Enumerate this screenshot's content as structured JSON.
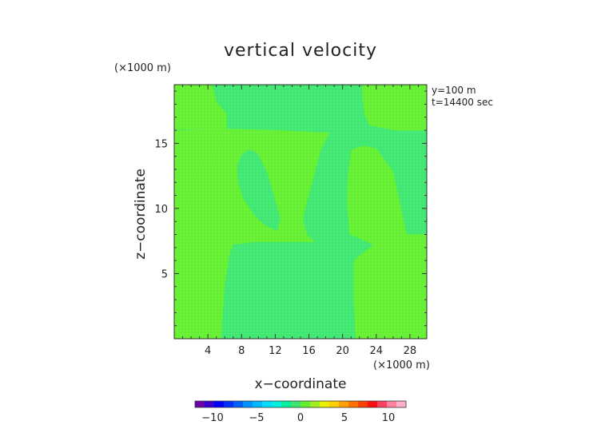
{
  "chart_data": {
    "type": "heatmap",
    "title": "vertical velocity",
    "xlabel": "x−coordinate",
    "ylabel": "z−coordinate",
    "x_scale_note": "(×1000 m)",
    "y_scale_note": "(×1000 m)",
    "info_lines": [
      "y=100 m",
      "t=14400 sec"
    ],
    "xlim": [
      0,
      30
    ],
    "ylim": [
      0,
      19.5
    ],
    "x_ticks": [
      4,
      8,
      12,
      16,
      20,
      24,
      28
    ],
    "y_ticks": [
      5,
      10,
      15
    ],
    "x_tick_labels": [
      "4",
      "8",
      "12",
      "16",
      "20",
      "24",
      "28"
    ],
    "y_tick_labels": [
      "5",
      "10",
      "15"
    ],
    "background_color": "#3ce86e",
    "regions": [
      {
        "name": "top-left-lobe",
        "level": 0,
        "color": "#62ef2e",
        "points": [
          [
            0,
            19.5
          ],
          [
            4.5,
            19.5
          ],
          [
            5,
            18.2
          ],
          [
            6.2,
            17.3
          ],
          [
            6.2,
            16.1
          ],
          [
            0,
            16.1
          ]
        ]
      },
      {
        "name": "top-right-lobe",
        "level": 0,
        "color": "#62ef2e",
        "points": [
          [
            22.3,
            19.5
          ],
          [
            22.4,
            18.5
          ],
          [
            22.6,
            17.2
          ],
          [
            23.2,
            16.4
          ],
          [
            26.2,
            16.0
          ],
          [
            30,
            16.0
          ],
          [
            30,
            19.5
          ]
        ]
      },
      {
        "name": "central-band",
        "level": 0,
        "color": "#62ef2e",
        "points": [
          [
            0,
            16.1
          ],
          [
            6.2,
            16.1
          ],
          [
            12,
            16.0
          ],
          [
            18.5,
            15.8
          ],
          [
            17.5,
            14.6
          ],
          [
            16.2,
            11.5
          ],
          [
            15.3,
            9.2
          ],
          [
            15.8,
            8.0
          ],
          [
            16.8,
            7.4
          ],
          [
            13,
            7.4
          ],
          [
            9.5,
            7.4
          ],
          [
            7,
            7.2
          ],
          [
            6.6,
            6.5
          ],
          [
            6.0,
            4.0
          ],
          [
            5.6,
            0
          ],
          [
            0,
            0
          ],
          [
            0,
            7.6
          ],
          [
            1.6,
            7.8
          ],
          [
            1.8,
            10.8
          ],
          [
            2.4,
            13.0
          ],
          [
            4.8,
            13.8
          ],
          [
            5.4,
            15.0
          ],
          [
            5.2,
            16.0
          ]
        ]
      },
      {
        "name": "central-band-right-edge",
        "level": 0,
        "color": "#62ef2e",
        "points": [
          [
            0,
            16.1
          ],
          [
            0,
            16.0
          ],
          [
            5.2,
            16.0
          ],
          [
            5.4,
            15.0
          ],
          [
            4.8,
            13.8
          ],
          [
            2.4,
            13.0
          ],
          [
            1.8,
            10.8
          ],
          [
            1.6,
            7.8
          ],
          [
            0,
            7.6
          ]
        ]
      },
      {
        "name": "right-lobe",
        "level": 0,
        "color": "#62ef2e",
        "points": [
          [
            21,
            14.5
          ],
          [
            22.5,
            14.8
          ],
          [
            24,
            14.6
          ],
          [
            26,
            12.8
          ],
          [
            27,
            9.8
          ],
          [
            27.6,
            8.0
          ],
          [
            30,
            8.0
          ],
          [
            30,
            0
          ],
          [
            21.5,
            0
          ],
          [
            21.3,
            3.0
          ],
          [
            21.3,
            6.0
          ],
          [
            22.6,
            6.7
          ],
          [
            23.6,
            7.2
          ],
          [
            22.3,
            7.6
          ],
          [
            20.8,
            8.0
          ],
          [
            20.5,
            10.5
          ],
          [
            20.6,
            12.5
          ]
        ]
      },
      {
        "name": "inner-left-lobe-hole",
        "level": 0,
        "color": "#3ce86e",
        "points": [
          [
            7.5,
            13.3
          ],
          [
            8.0,
            14.1
          ],
          [
            8.8,
            14.5
          ],
          [
            9.8,
            14.3
          ],
          [
            11.0,
            12.8
          ],
          [
            12.0,
            10.6
          ],
          [
            12.6,
            9.2
          ],
          [
            12.2,
            8.3
          ],
          [
            10.8,
            8.7
          ],
          [
            9.5,
            9.5
          ],
          [
            8.2,
            10.8
          ],
          [
            7.6,
            12.0
          ]
        ]
      },
      {
        "name": "inner-right-channel",
        "level": 0,
        "color": "#3ce86e",
        "points": [
          [
            18.5,
            15.8
          ],
          [
            22.0,
            15.8
          ],
          [
            21,
            14.5
          ],
          [
            20.6,
            12.5
          ],
          [
            20.5,
            10.5
          ],
          [
            20.8,
            8.0
          ],
          [
            22.3,
            7.6
          ],
          [
            23.6,
            7.2
          ],
          [
            22.6,
            6.7
          ],
          [
            21.3,
            6.0
          ],
          [
            21.3,
            3.0
          ],
          [
            21.5,
            0
          ],
          [
            5.6,
            0
          ],
          [
            6.0,
            4.0
          ],
          [
            6.6,
            6.5
          ],
          [
            7,
            7.2
          ],
          [
            9.5,
            7.4
          ],
          [
            13,
            7.4
          ],
          [
            16.8,
            7.4
          ],
          [
            15.8,
            8.0
          ],
          [
            15.3,
            9.2
          ],
          [
            16.2,
            11.5
          ],
          [
            17.5,
            14.6
          ]
        ]
      }
    ],
    "colorbar": {
      "min": -12,
      "max": 12,
      "tick_values": [
        -10,
        -5,
        0,
        5,
        10
      ],
      "tick_labels": [
        "−10",
        "−5",
        "0",
        "5",
        "10"
      ],
      "colors": [
        "#6a00a8",
        "#3b00d0",
        "#0000ff",
        "#0030ff",
        "#0060ff",
        "#0090ff",
        "#00b8ff",
        "#00dcff",
        "#00f0e0",
        "#00f0a0",
        "#3ce86e",
        "#62ef2e",
        "#a0f020",
        "#e8f000",
        "#ffd000",
        "#ffa000",
        "#ff7000",
        "#ff4000",
        "#ff1010",
        "#ff4060",
        "#ff80a0",
        "#ffb0c8"
      ]
    }
  }
}
